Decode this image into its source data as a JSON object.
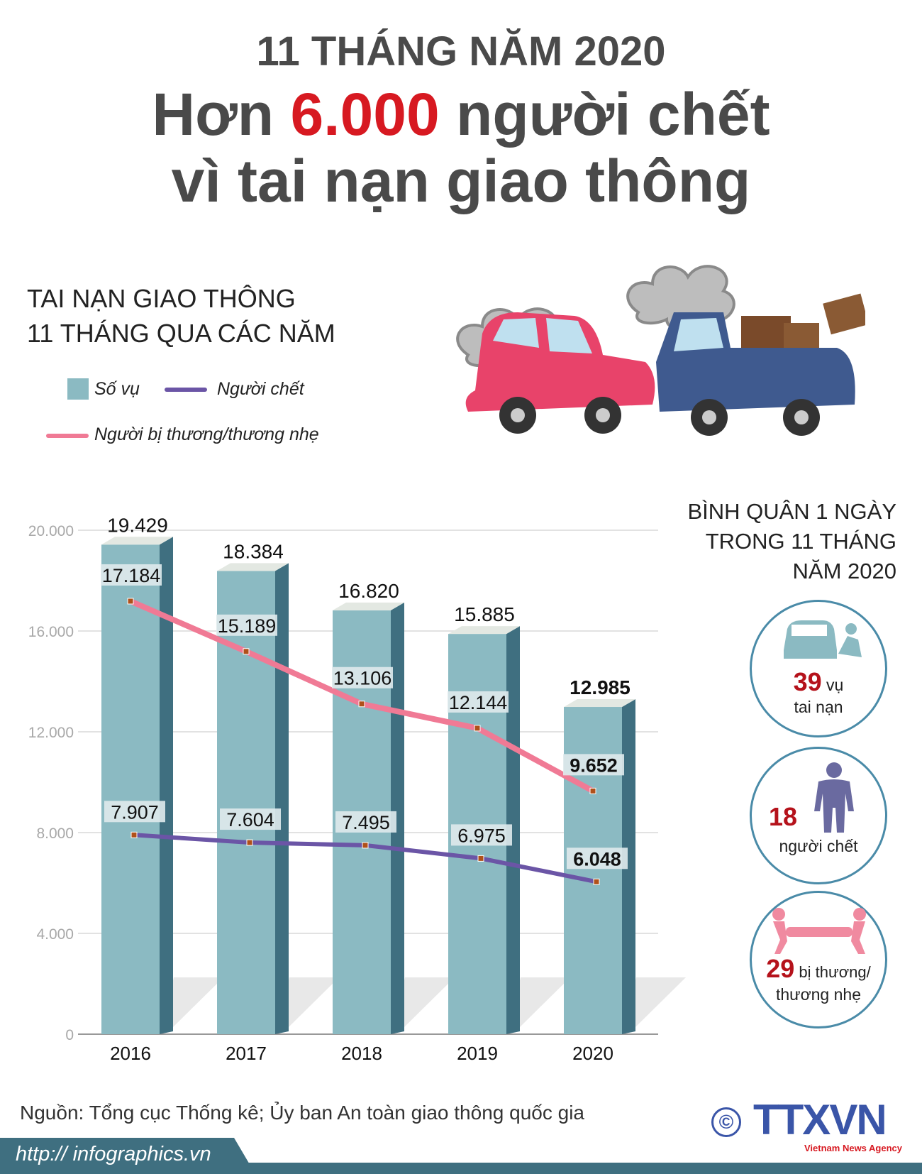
{
  "header": {
    "line1": "11 THÁNG NĂM 2020",
    "line2_pre": "Hơn ",
    "line2_highlight": "6.000",
    "line2_post": " người chết",
    "line3": "vì tai nạn giao thông"
  },
  "chart_data": {
    "type": "bar+line",
    "title_lines": [
      "TAI NẠN GIAO THÔNG",
      "11 THÁNG QUA CÁC NĂM"
    ],
    "categories": [
      "2016",
      "2017",
      "2018",
      "2019",
      "2020"
    ],
    "ylim": [
      0,
      20000
    ],
    "yticks": [
      0,
      4000,
      8000,
      12000,
      16000,
      20000
    ],
    "ytick_labels": [
      "0",
      "4.000",
      "8.000",
      "12.000",
      "16.000",
      "20.000"
    ],
    "grid": true,
    "legend_placement": "top-left",
    "series": [
      {
        "name": "Số vụ",
        "kind": "bar",
        "color": "#8bbac2",
        "values": [
          19429,
          18384,
          16820,
          15885,
          12985
        ],
        "labels": [
          "19.429",
          "18.384",
          "16.820",
          "15.885",
          "12.985"
        ]
      },
      {
        "name": "Người chết",
        "kind": "line",
        "color": "#6b55a6",
        "values": [
          7907,
          7604,
          7495,
          6975,
          6048
        ],
        "labels": [
          "7.907",
          "7.604",
          "7.495",
          "6.975",
          "6.048"
        ]
      },
      {
        "name": "Người bị thương/thương nhẹ",
        "kind": "line",
        "color": "#f07a95",
        "values": [
          17184,
          15189,
          13106,
          12144,
          9652
        ],
        "labels": [
          "17.184",
          "15.189",
          "13.106",
          "12.144",
          "9.652"
        ]
      }
    ]
  },
  "side": {
    "title_lines": [
      "BÌNH QUÂN 1 NGÀY",
      "TRONG 11 THÁNG",
      "NĂM 2020"
    ],
    "stats": [
      {
        "value": "39",
        "label1": " vụ",
        "label2": "tai nạn",
        "icon": "car-crash-icon"
      },
      {
        "value": "18",
        "label1": "",
        "label2": "người chết",
        "icon": "person-icon"
      },
      {
        "value": "29",
        "label1": " bị thương/",
        "label2": "thương nhẹ",
        "icon": "stretcher-icon"
      }
    ]
  },
  "footer": {
    "source": "Nguồn: Tổng cục Thống kê; Ủy ban An toàn giao thông quốc gia",
    "url": "http:// infographics.vn",
    "logo_text": "TTXVN",
    "logo_sub": "Vietnam News Agency",
    "copyright": "©"
  },
  "colors": {
    "title": "#4a4a4a",
    "highlight": "#d71921",
    "bar_front": "#8bbac2",
    "bar_side": "#3f6f80",
    "bar_top": "#e3e8e2",
    "deaths": "#6b55a6",
    "injured": "#f07a95",
    "band": "#3f6f80"
  }
}
